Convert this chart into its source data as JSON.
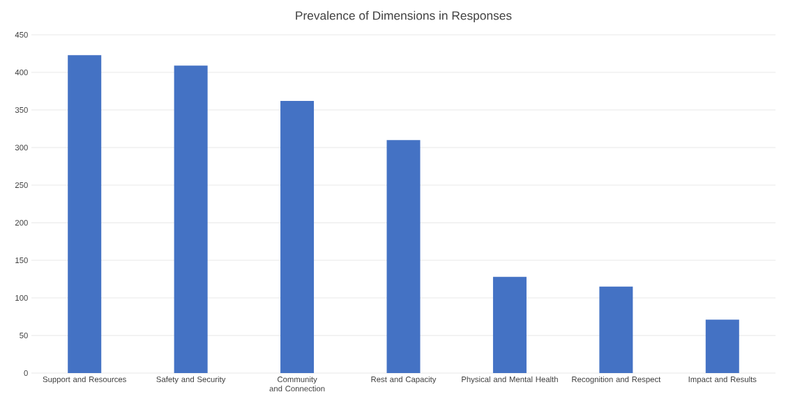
{
  "chart_data": {
    "type": "bar",
    "title": "Prevalence of Dimensions in Responses",
    "categories": [
      "Support and Resources",
      "Safety and Security",
      "Community and Connection",
      "Rest and Capacity",
      "Physical and Mental Health",
      "Recognition and Respect",
      "Impact and Results"
    ],
    "values": [
      423,
      409,
      362,
      310,
      128,
      115,
      71
    ],
    "color": "#4472c4",
    "ylim": [
      0,
      450
    ],
    "yticks": [
      0,
      50,
      100,
      150,
      200,
      250,
      300,
      350,
      400,
      450
    ],
    "grid": "y"
  }
}
